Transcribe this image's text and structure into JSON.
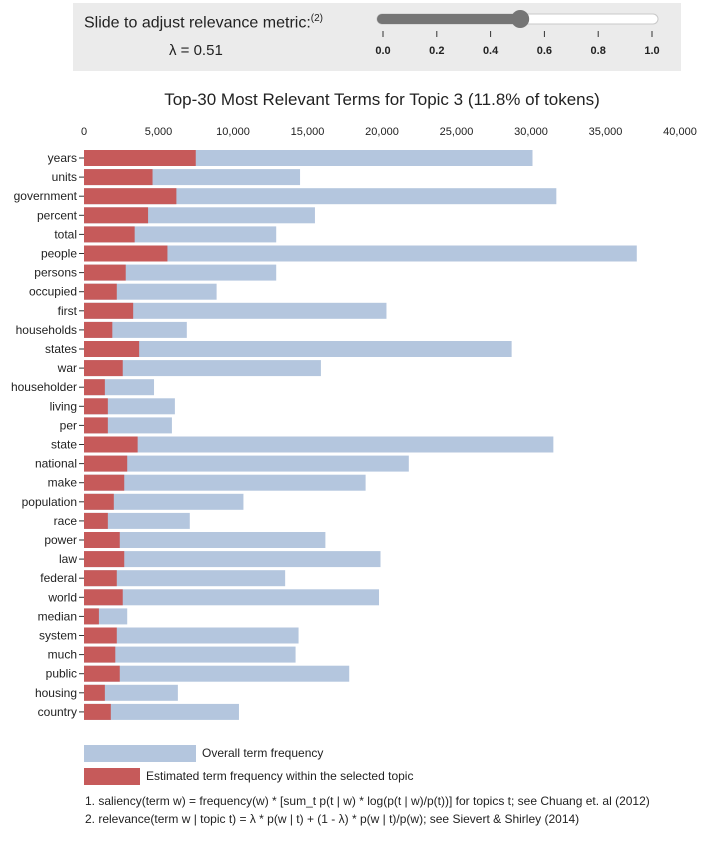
{
  "slider": {
    "label": "Slide to adjust relevance metric:",
    "footnote_ref": "(2)",
    "lambda_text": "λ = 0.51",
    "value": 0.51,
    "min": 0,
    "max": 1,
    "ticks": [
      "0.0",
      "0.2",
      "0.4",
      "0.6",
      "0.8",
      "1.0"
    ]
  },
  "chart_data": {
    "type": "bar",
    "orientation": "horizontal",
    "title": "Top-30 Most Relevant Terms for Topic 3 (11.8% of tokens)",
    "xlim": [
      0,
      40000
    ],
    "xticks": [
      0,
      5000,
      10000,
      15000,
      20000,
      25000,
      30000,
      35000,
      40000
    ],
    "xtick_labels": [
      "0",
      "5,000",
      "10,000",
      "15,000",
      "20,000",
      "25,000",
      "30,000",
      "35,000",
      "40,000"
    ],
    "categories": [
      "years",
      "units",
      "government",
      "percent",
      "total",
      "people",
      "persons",
      "occupied",
      "first",
      "households",
      "states",
      "war",
      "householder",
      "living",
      "per",
      "state",
      "national",
      "make",
      "population",
      "race",
      "power",
      "law",
      "federal",
      "world",
      "median",
      "system",
      "much",
      "public",
      "housing",
      "country"
    ],
    "series": [
      {
        "name": "Overall term frequency",
        "color": "#b4c6de",
        "values": [
          30100,
          14500,
          31700,
          15500,
          12900,
          37100,
          12900,
          8900,
          20300,
          6900,
          28700,
          15900,
          4700,
          6100,
          5900,
          31500,
          21800,
          18900,
          10700,
          7100,
          16200,
          19900,
          13500,
          19800,
          2900,
          14400,
          14200,
          17800,
          6300,
          10400
        ]
      },
      {
        "name": "Estimated term frequency within the selected topic",
        "color": "#c65a5a",
        "values": [
          7500,
          4600,
          6200,
          4300,
          3400,
          5600,
          2800,
          2200,
          3300,
          1900,
          3700,
          2600,
          1400,
          1600,
          1600,
          3600,
          2900,
          2700,
          2000,
          1600,
          2400,
          2700,
          2200,
          2600,
          1000,
          2200,
          2100,
          2400,
          1400,
          1800
        ]
      }
    ],
    "legend": [
      "Overall term frequency",
      "Estimated term frequency within the selected topic"
    ],
    "legend_placement": "bottom-left"
  },
  "footnotes": [
    "1. saliency(term w) = frequency(w) * [sum_t p(t | w) * log(p(t | w)/p(t))] for topics t; see Chuang et. al (2012)",
    "2. relevance(term w | topic t) = λ * p(w | t) + (1 - λ) * p(w | t)/p(w); see Sievert & Shirley (2014)"
  ]
}
